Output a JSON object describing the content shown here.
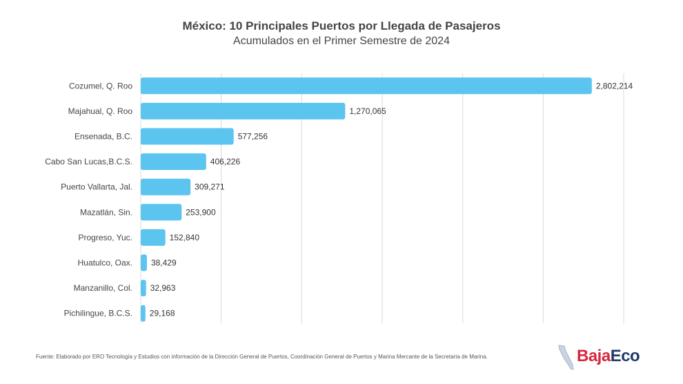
{
  "chart_data": {
    "type": "bar",
    "orientation": "horizontal",
    "title": "México: 10 Principales Puertos  por Llegada de Pasajeros",
    "subtitle": "Acumulados en el Primer Semestre de 2024",
    "categories": [
      "Cozumel, Q. Roo",
      "Majahual, Q. Roo",
      "Ensenada, B.C.",
      "Cabo San Lucas,B.C.S.",
      "Puerto Vallarta, Jal.",
      "Mazatlán, Sin.",
      "Progreso, Yuc.",
      "Huatulco, Oax.",
      "Manzanillo, Col.",
      "Pichilingue, B.C.S."
    ],
    "values": [
      2802214,
      1270065,
      577256,
      406226,
      309271,
      253900,
      152840,
      38429,
      32963,
      29168
    ],
    "value_labels": [
      "2,802,214",
      "1,270,065",
      "577,256",
      "406,226",
      "309,271",
      "253,900",
      "152,840",
      "38,429",
      "32,963",
      "29,168"
    ],
    "xlim": [
      0,
      3000000
    ],
    "grid_step": 500000,
    "grid": true,
    "bar_color": "#5bc4ef"
  },
  "footer": {
    "source": "Fuente: Elaborado por ERO Tecnología y Estudios con información de la Dirección General de Puertos, Coordinación General de Puertos y Marina Mercante de la Secretaría de Marina."
  },
  "logo": {
    "part1": "Baja",
    "part2": "Eco",
    "color1": "#d7263d",
    "color2": "#1f3a6b"
  }
}
